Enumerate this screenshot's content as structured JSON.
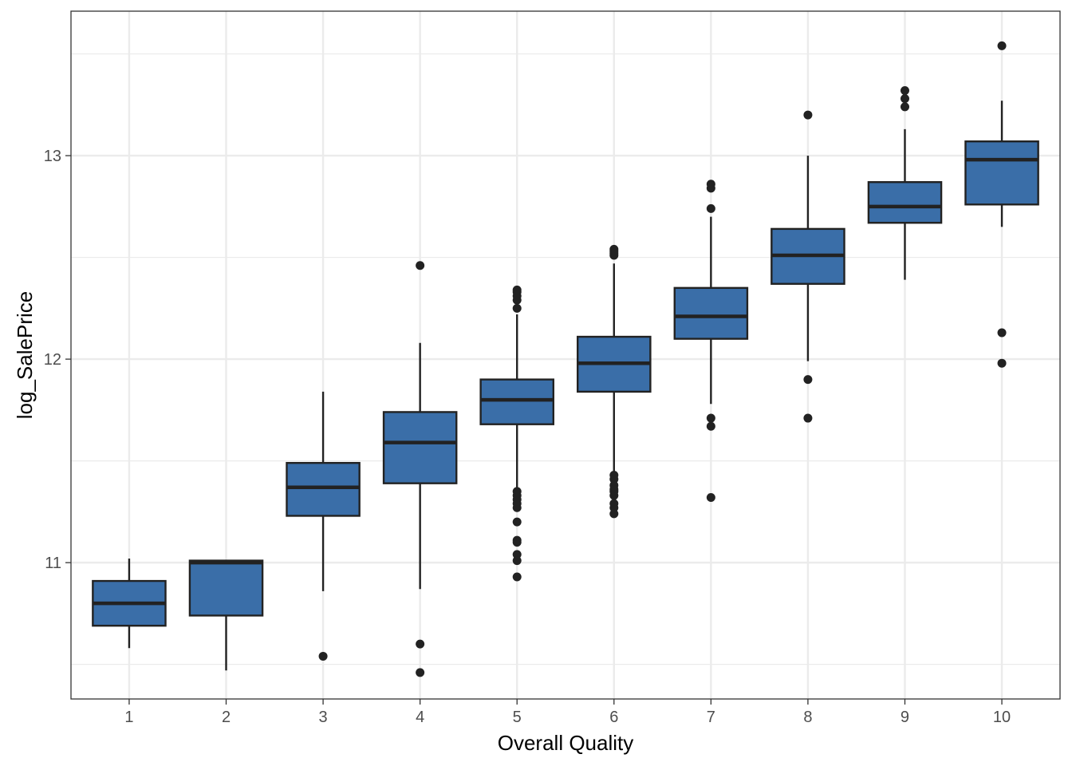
{
  "chart_data": {
    "type": "boxplot",
    "title": "",
    "xlabel": "Overall Quality",
    "ylabel": "log_SalePrice",
    "ylim": [
      10.33,
      13.71
    ],
    "yticks": [
      11,
      12,
      13
    ],
    "yticks_minor": [
      10.5,
      11.5,
      12.5,
      13.5
    ],
    "grid": true,
    "legend": "none",
    "box_fill": "#3A6EA8",
    "line_color": "#222222",
    "grid_color": "#EBEBEB",
    "categories": [
      "1",
      "2",
      "3",
      "4",
      "5",
      "6",
      "7",
      "8",
      "9",
      "10"
    ],
    "boxes": [
      {
        "x": "1",
        "whisker_low": 10.58,
        "q1": 10.69,
        "median": 10.8,
        "q3": 10.91,
        "whisker_high": 11.02,
        "outliers": []
      },
      {
        "x": "2",
        "whisker_low": 10.47,
        "q1": 10.74,
        "median": 11.0,
        "q3": 11.01,
        "whisker_high": 11.01,
        "outliers": []
      },
      {
        "x": "3",
        "whisker_low": 10.86,
        "q1": 11.23,
        "median": 11.37,
        "q3": 11.49,
        "whisker_high": 11.84,
        "outliers": [
          10.54
        ]
      },
      {
        "x": "4",
        "whisker_low": 10.87,
        "q1": 11.39,
        "median": 11.59,
        "q3": 11.74,
        "whisker_high": 12.08,
        "outliers": [
          10.6,
          10.46,
          12.46
        ]
      },
      {
        "x": "5",
        "whisker_low": 11.35,
        "q1": 11.68,
        "median": 11.8,
        "q3": 11.9,
        "whisker_high": 12.22,
        "outliers": [
          11.35,
          11.33,
          11.31,
          11.29,
          11.27,
          11.2,
          11.11,
          11.1,
          11.04,
          11.01,
          10.93,
          12.25,
          12.29,
          12.31,
          12.33,
          12.34
        ]
      },
      {
        "x": "6",
        "whisker_low": 11.44,
        "q1": 11.84,
        "median": 11.98,
        "q3": 12.11,
        "whisker_high": 12.47,
        "outliers": [
          11.43,
          11.41,
          11.38,
          11.36,
          11.35,
          11.33,
          11.29,
          11.27,
          11.24,
          12.51,
          12.52,
          12.53,
          12.54
        ]
      },
      {
        "x": "7",
        "whisker_low": 11.78,
        "q1": 12.1,
        "median": 12.21,
        "q3": 12.35,
        "whisker_high": 12.7,
        "outliers": [
          11.71,
          11.67,
          11.32,
          12.74,
          12.84,
          12.86
        ]
      },
      {
        "x": "8",
        "whisker_low": 11.99,
        "q1": 12.37,
        "median": 12.51,
        "q3": 12.64,
        "whisker_high": 13.0,
        "outliers": [
          11.9,
          11.71,
          13.2
        ]
      },
      {
        "x": "9",
        "whisker_low": 12.39,
        "q1": 12.67,
        "median": 12.75,
        "q3": 12.87,
        "whisker_high": 13.13,
        "outliers": [
          13.24,
          13.28,
          13.32
        ]
      },
      {
        "x": "10",
        "whisker_low": 12.65,
        "q1": 12.76,
        "median": 12.98,
        "q3": 13.07,
        "whisker_high": 13.27,
        "outliers": [
          12.13,
          11.98,
          13.54
        ]
      }
    ]
  }
}
